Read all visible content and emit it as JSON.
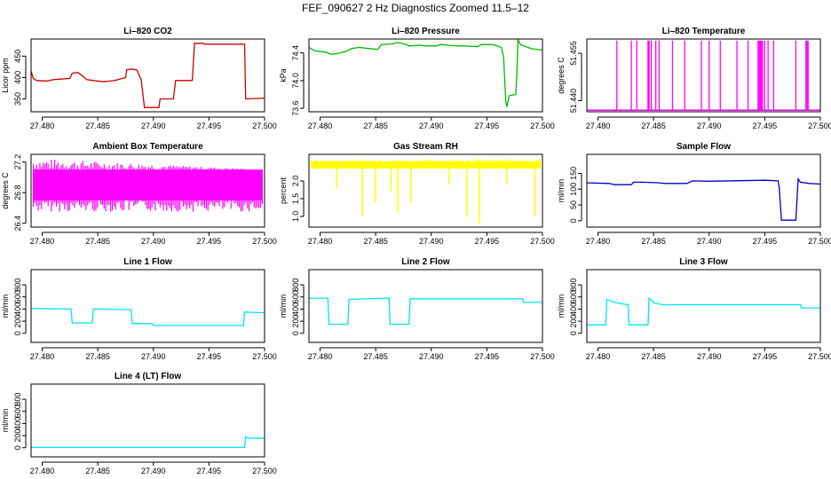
{
  "figure": {
    "suptitle": "FEF_090627  2 Hz Diagnostics Zoomed 11.5–12"
  },
  "chart_data": [
    {
      "type": "line",
      "title": "Li–820 CO2",
      "xlabel": "",
      "ylabel": "Licor ppm",
      "color": "#cc0000",
      "xlim": [
        27.479,
        27.5
      ],
      "ylim": [
        320,
        490
      ],
      "xticks": [
        "27.480",
        "27.485",
        "27.490",
        "27.495",
        "27.500"
      ],
      "yticks": [
        "350",
        "400",
        "450"
      ],
      "series": [
        {
          "x": [
            27.479,
            27.4792,
            27.4795,
            27.4805,
            27.481,
            27.4825,
            27.4827,
            27.4832,
            27.4838,
            27.484,
            27.4855,
            27.4865,
            27.4875,
            27.4876,
            27.488,
            27.4885,
            27.4889,
            27.4892,
            27.4905,
            27.4906,
            27.491,
            27.4918,
            27.492,
            27.4935,
            27.4937,
            27.4945,
            27.4946,
            27.4968,
            27.4982,
            27.4983,
            27.5
          ],
          "y": [
            415,
            398,
            393,
            392,
            395,
            398,
            410,
            412,
            400,
            395,
            390,
            393,
            400,
            418,
            420,
            418,
            395,
            330,
            330,
            350,
            350,
            350,
            393,
            393,
            480,
            480,
            478,
            478,
            478,
            350,
            352
          ]
        }
      ]
    },
    {
      "type": "line",
      "title": "Li–820 Pressure",
      "xlabel": "",
      "ylabel": "kPa",
      "color": "#00bb00",
      "xlim": [
        27.479,
        27.5
      ],
      "ylim": [
        73.55,
        74.6
      ],
      "xticks": [
        "27.480",
        "27.485",
        "27.490",
        "27.495",
        "27.500"
      ],
      "yticks": [
        "73.6",
        "74.0",
        "74.4"
      ],
      "series": [
        {
          "x": [
            27.479,
            27.4795,
            27.4805,
            27.481,
            27.4815,
            27.4823,
            27.4828,
            27.4835,
            27.484,
            27.4852,
            27.4855,
            27.4865,
            27.487,
            27.4878,
            27.488,
            27.489,
            27.4895,
            27.4905,
            27.4908,
            27.4915,
            27.4925,
            27.493,
            27.4942,
            27.4945,
            27.4955,
            27.4963,
            27.4965,
            27.4967,
            27.4968,
            27.497,
            27.4976,
            27.4977,
            27.4978,
            27.498,
            27.499,
            27.5
          ],
          "y": [
            74.48,
            74.43,
            74.41,
            74.38,
            74.39,
            74.42,
            74.46,
            74.48,
            74.47,
            74.45,
            74.52,
            74.53,
            74.55,
            74.52,
            74.5,
            74.51,
            74.5,
            74.5,
            74.52,
            74.51,
            74.5,
            74.5,
            74.49,
            74.52,
            74.52,
            74.48,
            74.35,
            73.7,
            73.62,
            73.78,
            73.8,
            74.1,
            74.6,
            74.52,
            74.46,
            74.44
          ]
        }
      ]
    },
    {
      "type": "line",
      "title": "Li–820 Temperature",
      "xlabel": "",
      "ylabel": "degrees C",
      "color": "#ff00ff",
      "xlim": [
        27.479,
        27.5
      ],
      "ylim": [
        51.4365,
        51.4595
      ],
      "xticks": [
        "27.480",
        "27.485",
        "27.490",
        "27.495",
        "27.500"
      ],
      "yticks": [
        "51.440",
        "51.455"
      ],
      "base": 51.437,
      "spike": 51.459,
      "spikes_x": [
        27.4817,
        27.483,
        27.4835,
        27.4845,
        27.4846,
        27.4848,
        27.4852,
        27.4855,
        27.4867,
        27.4878,
        27.4893,
        27.49,
        27.491,
        27.4925,
        27.4935,
        27.4944,
        27.4945,
        27.4946,
        27.4947,
        27.4948,
        27.495,
        27.4953,
        27.4958,
        27.4978,
        27.4987,
        27.4988,
        27.4989
      ]
    },
    {
      "type": "line",
      "title": "Ambient Box Temperature",
      "xlabel": "",
      "ylabel": "degrees C",
      "color": "#ff00ff",
      "xlim": [
        27.479,
        27.5
      ],
      "ylim": [
        26.35,
        27.3
      ],
      "xticks": [
        "27.480",
        "27.485",
        "27.490",
        "27.495",
        "27.500"
      ],
      "yticks": [
        "26.4",
        "26.8",
        "27.2"
      ],
      "band": [
        26.7,
        27.1
      ],
      "noise_max": [
        27.25,
        27.1
      ],
      "noise_min": [
        26.55,
        26.55
      ]
    },
    {
      "type": "line",
      "title": "Gas Stream RH",
      "xlabel": "",
      "ylabel": "percent",
      "color": "#ffff00",
      "xlim": [
        27.479,
        27.5
      ],
      "ylim": [
        0.7,
        2.75
      ],
      "xticks": [
        "27.480",
        "27.485",
        "27.490",
        "27.495",
        "27.500"
      ],
      "yticks": [
        "1.0",
        "1.5",
        "2.0"
      ],
      "band": [
        2.35,
        2.55
      ],
      "noise_max": [
        2.6,
        2.62
      ],
      "dips": [
        {
          "x": 27.4815,
          "y": 1.8
        },
        {
          "x": 27.4838,
          "y": 1.0
        },
        {
          "x": 27.485,
          "y": 1.4
        },
        {
          "x": 27.4864,
          "y": 1.7
        },
        {
          "x": 27.487,
          "y": 1.1
        },
        {
          "x": 27.4882,
          "y": 1.4
        },
        {
          "x": 27.4916,
          "y": 1.9
        },
        {
          "x": 27.4932,
          "y": 1.0
        },
        {
          "x": 27.4943,
          "y": 0.8
        },
        {
          "x": 27.4968,
          "y": 1.9
        },
        {
          "x": 27.4993,
          "y": 1.0
        }
      ]
    },
    {
      "type": "line",
      "title": "Sample Flow",
      "xlabel": "",
      "ylabel": "ml/min",
      "color": "#0000cc",
      "xlim": [
        27.479,
        27.5
      ],
      "ylim": [
        -20,
        210
      ],
      "xticks": [
        "27.480",
        "27.485",
        "27.490",
        "27.495",
        "27.500"
      ],
      "yticks": [
        "0",
        "50",
        "100",
        "150"
      ],
      "series": [
        {
          "x": [
            27.479,
            27.481,
            27.4815,
            27.483,
            27.4832,
            27.484,
            27.4855,
            27.486,
            27.488,
            27.4885,
            27.49,
            27.495,
            27.4962,
            27.4963,
            27.4965,
            27.4978,
            27.498,
            27.4982,
            27.499,
            27.5
          ],
          "y": [
            120,
            118,
            114,
            114,
            122,
            122,
            120,
            118,
            118,
            126,
            125,
            128,
            126,
            105,
            2,
            2,
            132,
            122,
            118,
            116
          ]
        }
      ]
    },
    {
      "type": "line",
      "title": "Line 1 Flow",
      "xlabel": "",
      "ylabel": "ml/min",
      "color": "#00e5ee",
      "xlim": [
        27.479,
        27.5
      ],
      "ylim": [
        -150,
        1050
      ],
      "xticks": [
        "27.480",
        "27.485",
        "27.490",
        "27.495",
        "27.500"
      ],
      "yticks": [
        "0",
        "200",
        "400",
        "600",
        "800"
      ],
      "series": [
        {
          "x": [
            27.479,
            27.4826,
            27.4827,
            27.4845,
            27.4846,
            27.488,
            27.4881,
            27.4899,
            27.49,
            27.4981,
            27.4982,
            27.5
          ],
          "y": [
            410,
            400,
            170,
            170,
            400,
            390,
            160,
            160,
            130,
            130,
            350,
            340
          ]
        }
      ]
    },
    {
      "type": "line",
      "title": "Line 2 Flow",
      "xlabel": "",
      "ylabel": "ml/min",
      "color": "#00e5ee",
      "xlim": [
        27.479,
        27.5
      ],
      "ylim": [
        -150,
        1050
      ],
      "xticks": [
        "27.480",
        "27.485",
        "27.490",
        "27.495",
        "27.500"
      ],
      "yticks": [
        "0",
        "200",
        "400",
        "600",
        "800"
      ],
      "series": [
        {
          "x": [
            27.479,
            27.4807,
            27.4808,
            27.4825,
            27.4826,
            27.4862,
            27.4863,
            27.488,
            27.4881,
            27.4982,
            27.4983,
            27.5
          ],
          "y": [
            580,
            580,
            150,
            150,
            560,
            580,
            150,
            150,
            570,
            570,
            510,
            510
          ]
        }
      ]
    },
    {
      "type": "line",
      "title": "Line 3 Flow",
      "xlabel": "",
      "ylabel": "ml/min",
      "color": "#00e5ee",
      "xlim": [
        27.479,
        27.5
      ],
      "ylim": [
        -150,
        1050
      ],
      "xticks": [
        "27.480",
        "27.485",
        "27.490",
        "27.495",
        "27.500"
      ],
      "yticks": [
        "0",
        "200",
        "400",
        "600",
        "800"
      ],
      "series": [
        {
          "x": [
            27.479,
            27.4807,
            27.4808,
            27.4815,
            27.4827,
            27.4828,
            27.4845,
            27.4846,
            27.4851,
            27.4855,
            27.486,
            27.4982,
            27.4983,
            27.5
          ],
          "y": [
            140,
            140,
            560,
            510,
            470,
            140,
            140,
            580,
            500,
            480,
            470,
            470,
            420,
            420
          ]
        }
      ]
    },
    {
      "type": "line",
      "title": "Line 4 (LT) Flow",
      "xlabel": "",
      "ylabel": "ml/min",
      "color": "#00e5ee",
      "xlim": [
        27.479,
        27.5
      ],
      "ylim": [
        -150,
        1050
      ],
      "xticks": [
        "27.480",
        "27.485",
        "27.490",
        "27.495",
        "27.500"
      ],
      "yticks": [
        "0",
        "200",
        "400",
        "600",
        "800"
      ],
      "series": [
        {
          "x": [
            27.479,
            27.4982,
            27.4983,
            27.4985,
            27.5
          ],
          "y": [
            5,
            5,
            180,
            160,
            155
          ]
        }
      ]
    }
  ]
}
